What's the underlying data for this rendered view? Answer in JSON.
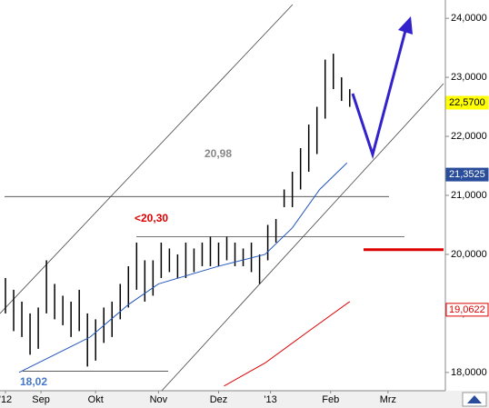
{
  "chart_data": {
    "type": "ohlc",
    "x": [
      2,
      5,
      8,
      11,
      14,
      17,
      20,
      23,
      26,
      29,
      32,
      35,
      38,
      41,
      44,
      47,
      50,
      53,
      56,
      59,
      62,
      65,
      68,
      71,
      74,
      77,
      80,
      83,
      86,
      89,
      92,
      95,
      98,
      101,
      104,
      107,
      110,
      113,
      116,
      119,
      122,
      125,
      128
    ],
    "high": [
      19.6,
      19.4,
      19.2,
      19.0,
      19.1,
      19.9,
      19.5,
      19.3,
      19.2,
      19.4,
      19.0,
      18.9,
      19.1,
      19.2,
      19.5,
      19.8,
      20.2,
      19.9,
      19.9,
      20.2,
      20.1,
      20.0,
      20.2,
      20.1,
      20.2,
      20.3,
      20.2,
      20.3,
      20.2,
      20.1,
      20.2,
      20.0,
      20.5,
      20.6,
      21.1,
      21.4,
      21.8,
      22.2,
      22.5,
      23.3,
      23.4,
      23.0,
      22.8
    ],
    "low": [
      19.0,
      18.7,
      18.6,
      18.3,
      18.4,
      19.0,
      18.9,
      18.8,
      18.6,
      18.7,
      18.1,
      18.2,
      18.5,
      18.6,
      18.9,
      19.1,
      19.4,
      19.2,
      19.3,
      19.6,
      19.7,
      19.6,
      19.6,
      19.7,
      19.8,
      19.8,
      19.8,
      19.9,
      19.8,
      19.8,
      19.7,
      19.5,
      19.9,
      20.2,
      20.8,
      20.8,
      21.1,
      21.4,
      21.7,
      22.3,
      22.8,
      22.6,
      22.5
    ],
    "bar_color": "#000000",
    "lines": [
      {
        "color": "#2255bb",
        "x": [
          7,
          33,
          47,
          58,
          80,
          97,
          107,
          117,
          127
        ],
        "values": [
          18.0,
          18.6,
          19.15,
          19.5,
          19.8,
          20.0,
          20.45,
          21.1,
          21.55
        ]
      },
      {
        "color": "#dd0000",
        "x": [
          82,
          97,
          113,
          128
        ],
        "values": [
          17.77,
          18.16,
          18.7,
          19.2
        ]
      }
    ],
    "annotations": [
      {
        "label": "20,98",
        "value": 20.98,
        "color": "#888888"
      },
      {
        "label": "<20,30",
        "value": 20.3,
        "color": "#dd0000"
      },
      {
        "label": "18,02",
        "value": 18.02,
        "color": "#4477cc"
      }
    ],
    "marker_lines": [
      {
        "value": 20.08,
        "color": "#dd0000"
      }
    ],
    "last_labels": [
      {
        "value": 22.57,
        "label": "22,5700",
        "bg": "#ffff00",
        "color": "#000000"
      },
      {
        "value": 21.3525,
        "label": "21,3525",
        "bg": "#2a4d9b",
        "color": "#ffffff"
      },
      {
        "value": 19.0622,
        "label": "19,0622",
        "bg": "#ffffff",
        "color": "#dd0000"
      }
    ],
    "xlim": [
      0,
      163
    ],
    "xticks": [
      {
        "value": 2,
        "label": "'12"
      },
      {
        "value": 15,
        "label": "Sep"
      },
      {
        "value": 35,
        "label": "Okt"
      },
      {
        "value": 58,
        "label": "Nov"
      },
      {
        "value": 80,
        "label": "Dez"
      },
      {
        "value": 99,
        "label": "'13"
      },
      {
        "value": 121,
        "label": "Feb"
      },
      {
        "value": 142,
        "label": "Mrz"
      }
    ],
    "ylim": [
      17.69,
      24.31
    ],
    "yticks": [
      {
        "value": 18,
        "label": "18,0000"
      },
      {
        "value": 19,
        "label": "19,0000"
      },
      {
        "value": 20,
        "label": "20,0000"
      },
      {
        "value": 21,
        "label": "21,0000"
      },
      {
        "value": 22,
        "label": "22,0000"
      },
      {
        "value": 23,
        "label": "23,0000"
      },
      {
        "value": 24,
        "label": "24,0000"
      }
    ]
  }
}
